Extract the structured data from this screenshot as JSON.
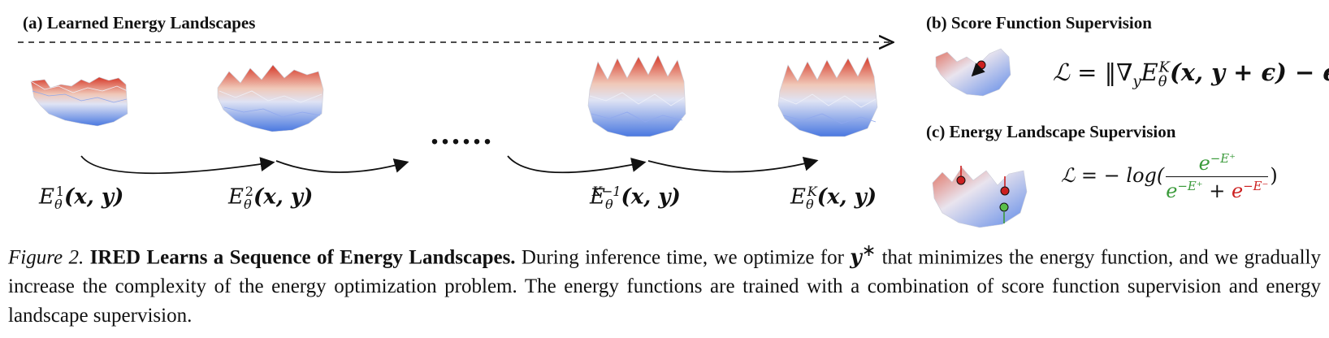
{
  "figure": {
    "panel_a": {
      "title": "(a) Learned Energy Landscapes",
      "ellipsis": "......",
      "labels": [
        {
          "E": "E",
          "sub": "θ",
          "sup": "1",
          "args": "(x, y)"
        },
        {
          "E": "E",
          "sub": "θ",
          "sup": "2",
          "args": "(x, y)"
        },
        {
          "E": "E",
          "sub": "θ",
          "sup": "K−1",
          "args": "(x, y)"
        },
        {
          "E": "E",
          "sub": "θ",
          "sup": "K",
          "args": "(x, y)"
        }
      ]
    },
    "panel_b": {
      "title": "(b) Score Function Supervision",
      "loss_lhs": "ℒ = ",
      "loss_rhs": "‖∇",
      "grad_sub": "y",
      "E": "E",
      "E_sub": "θ",
      "E_sup": "K",
      "args": "(x, y + ϵ) − ϵ‖"
    },
    "panel_c": {
      "title": "(c) Energy Landscape Supervision",
      "loss_lhs": "ℒ = − log(",
      "numerator": "e",
      "numerator_sup": "−E⁺",
      "den_pos": "e",
      "den_pos_sup": "−E⁺",
      "den_plus": " + ",
      "den_neg": "e",
      "den_neg_sup": "−E⁻",
      "loss_close": ")"
    },
    "colors": {
      "low": "#4a78e0",
      "mid": "#e8e8ee",
      "high": "#d63a2a",
      "positive": "#3a9a3a",
      "negative": "#cc2020"
    }
  },
  "caption": {
    "label": "Figure 2.",
    "title": "IRED Learns a Sequence of Energy Landscapes.",
    "text_1": " During inference time, we optimize for ",
    "var": "y",
    "var_sup": "∗",
    "text_2": " that minimizes the energy function, and we gradually increase the complexity of the energy optimization problem. The energy functions are trained with a combination of score function supervision and energy landscape supervision."
  }
}
